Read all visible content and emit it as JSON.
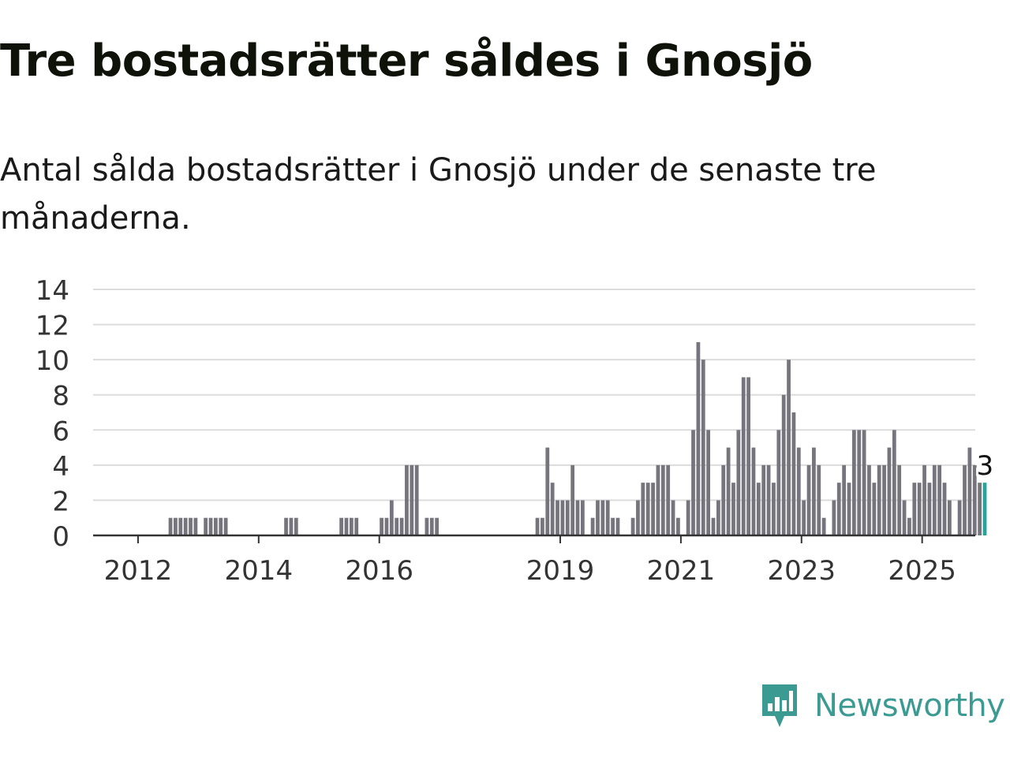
{
  "title": "Tre bostadsrätter såldes i Gnosjö",
  "subtitle": "Antal sålda bostadsrätter i Gnosjö under de senaste tre månaderna.",
  "brand": {
    "name": "Newsworthy",
    "icon": "newsworthy-logo-icon",
    "color": "#3b9a92"
  },
  "chart_data": {
    "type": "bar",
    "x_start": "2011-01",
    "frequency": "monthly",
    "y_ticks": [
      "0",
      "2",
      "4",
      "6",
      "8",
      "10",
      "12",
      "14"
    ],
    "x_ticks": [
      {
        "label": "2012",
        "year": 2012
      },
      {
        "label": "2014",
        "year": 2014
      },
      {
        "label": "2016",
        "year": 2016
      },
      {
        "label": "2019",
        "year": 2019
      },
      {
        "label": "2021",
        "year": 2021
      },
      {
        "label": "2023",
        "year": 2023
      },
      {
        "label": "2025",
        "year": 2025
      }
    ],
    "ylim": [
      0,
      14
    ],
    "grid": true,
    "bar_color": "#76747d",
    "highlight_color": "#27a59b",
    "highlight_label": "3",
    "values": [
      0,
      0,
      0,
      0,
      0,
      0,
      0,
      0,
      0,
      0,
      0,
      0,
      0,
      0,
      0,
      0,
      0,
      0,
      1,
      1,
      1,
      1,
      1,
      1,
      0,
      1,
      1,
      1,
      1,
      1,
      0,
      0,
      0,
      0,
      0,
      0,
      0,
      0,
      0,
      0,
      0,
      1,
      1,
      1,
      0,
      0,
      0,
      0,
      0,
      0,
      0,
      0,
      1,
      1,
      1,
      1,
      0,
      0,
      0,
      0,
      1,
      1,
      2,
      1,
      1,
      4,
      4,
      4,
      0,
      1,
      1,
      1,
      0,
      0,
      0,
      0,
      0,
      0,
      0,
      0,
      0,
      0,
      0,
      0,
      0,
      0,
      0,
      0,
      0,
      0,
      0,
      1,
      1,
      5,
      3,
      2,
      2,
      2,
      4,
      2,
      2,
      0,
      1,
      2,
      2,
      2,
      1,
      1,
      0,
      0,
      1,
      2,
      3,
      3,
      3,
      4,
      4,
      4,
      2,
      1,
      0,
      2,
      6,
      11,
      10,
      6,
      1,
      2,
      4,
      5,
      3,
      6,
      9,
      9,
      5,
      3,
      4,
      4,
      3,
      6,
      8,
      10,
      7,
      5,
      2,
      4,
      5,
      4,
      1,
      0,
      2,
      3,
      4,
      3,
      6,
      6,
      6,
      4,
      3,
      4,
      4,
      5,
      6,
      4,
      2,
      1,
      3,
      3,
      4,
      3,
      4,
      4,
      3,
      2,
      0,
      2,
      4,
      5,
      4,
      3,
      3
    ]
  }
}
